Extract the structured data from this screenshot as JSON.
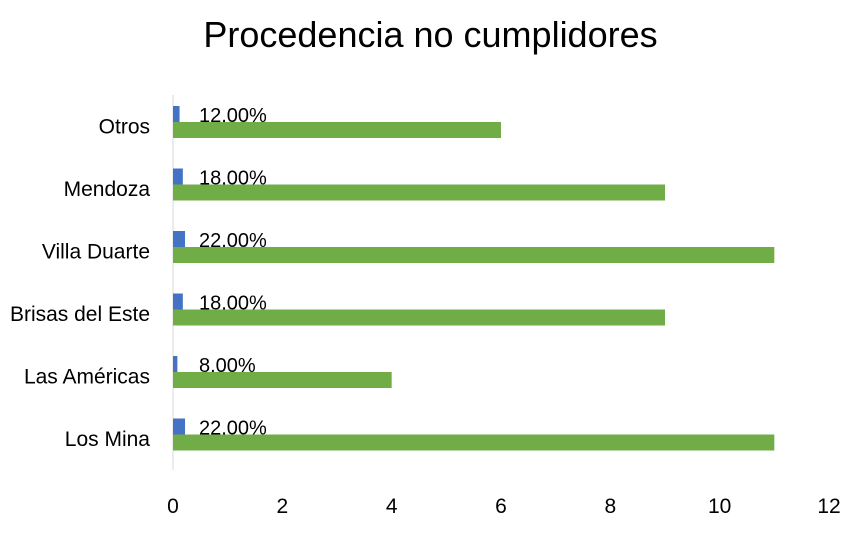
{
  "chart_data": {
    "type": "bar",
    "orientation": "horizontal",
    "title": "Procedencia no cumplidores",
    "xlabel": "",
    "ylabel": "",
    "categories": [
      "Los Mina",
      "Las Américas",
      "Brisas del Este",
      "Villa Duarte",
      "Mendoza",
      "Otros"
    ],
    "series": [
      {
        "values": [
          11,
          4,
          9,
          11,
          9,
          6
        ],
        "color": "#70ad47"
      },
      {
        "values": [
          0.22,
          0.08,
          0.18,
          0.22,
          0.18,
          0.12
        ],
        "color": "#4472c4",
        "data_labels": [
          "22.00%",
          "8.00%",
          "18.00%",
          "22.00%",
          "18.00%",
          "12.00%"
        ]
      }
    ],
    "xlim": [
      0,
      12
    ],
    "xticks": [
      "0",
      "2",
      "4",
      "6",
      "8",
      "10",
      "12"
    ],
    "grid": false,
    "legend": "none"
  }
}
